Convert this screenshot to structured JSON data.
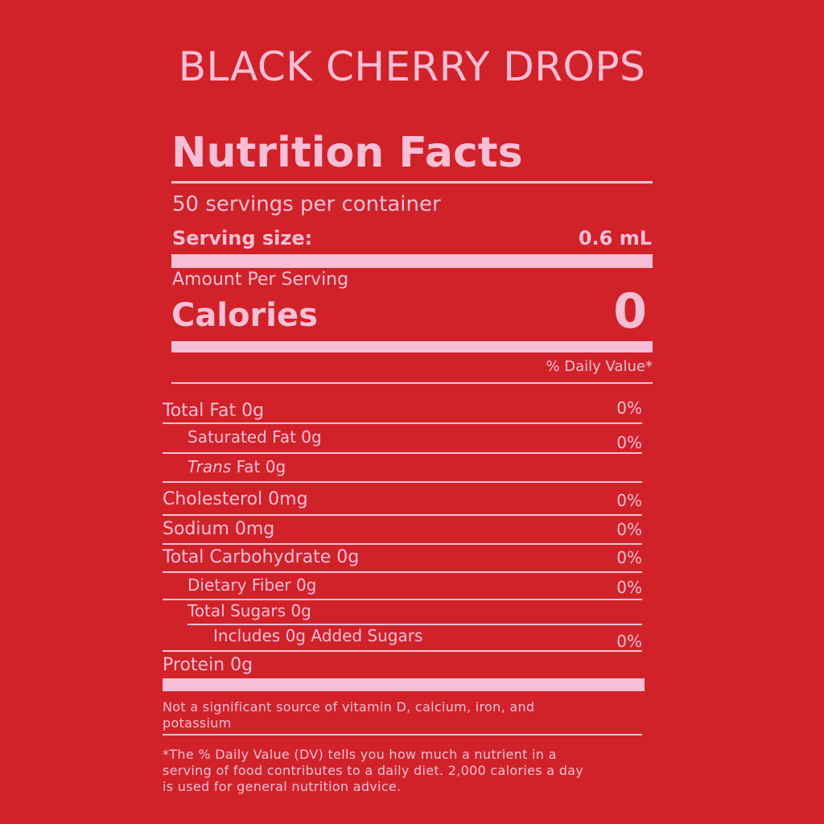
{
  "title": "BLACK CHERRY DROPS",
  "label": {
    "heading": "Nutrition Facts",
    "servings_per_container": "50 servings per container",
    "serving_size_label": "Serving size:",
    "serving_size_value": "0.6 mL",
    "amount_per_serving": "Amount Per Serving",
    "calories_label": "Calories",
    "calories_value": "0",
    "daily_value_header": "% Daily Value*",
    "rows": {
      "total_fat": {
        "label": "Total Fat 0g",
        "dv": "0%"
      },
      "saturated_fat": {
        "label": "Saturated Fat 0g",
        "dv": "0%"
      },
      "trans_fat_italic": "Trans",
      "trans_fat_rest": " Fat 0g",
      "cholesterol": {
        "label": "Cholesterol 0mg",
        "dv": "0%"
      },
      "sodium": {
        "label": "Sodium 0mg",
        "dv": "0%"
      },
      "total_carbohydrate": {
        "label": "Total Carbohydrate 0g",
        "dv": "0%"
      },
      "dietary_fiber": {
        "label": "Dietary Fiber 0g",
        "dv": "0%"
      },
      "total_sugars": {
        "label": "Total Sugars 0g"
      },
      "added_sugars": {
        "label": "Includes 0g Added Sugars",
        "dv": "0%"
      },
      "protein": {
        "label": "Protein 0g"
      }
    },
    "not_significant_line1": "Not a significant source of vitamin D, calcium, iron, and",
    "not_significant_line2": "potassium",
    "footnote_line1": "*The % Daily Value (DV) tells you how much a nutrient in a",
    "footnote_line2": "serving of food contributes to a daily diet. 2,000 calories a day",
    "footnote_line3": "is used for general nutrition advice."
  },
  "colors": {
    "background": "#d1222a",
    "text": "#f7bfd6"
  }
}
